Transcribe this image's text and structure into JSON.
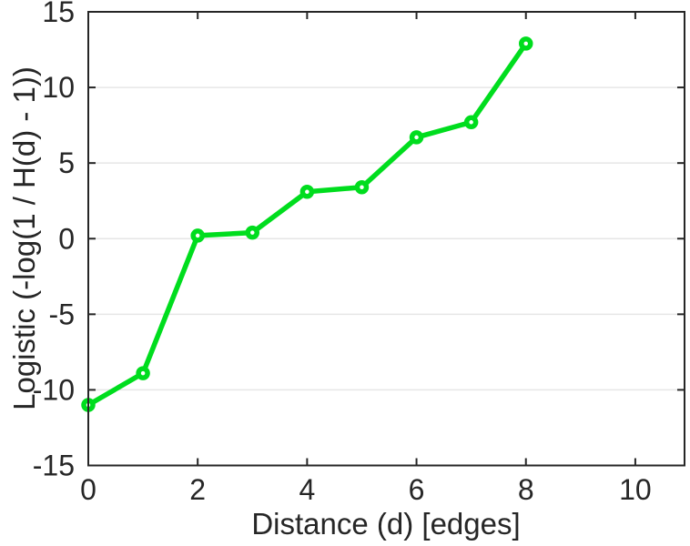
{
  "chart_data": {
    "type": "line",
    "title": "",
    "xlabel": "Distance (d) [edges]",
    "ylabel": "Logistic (-log(1 / H(d) - 1))",
    "x": [
      0,
      1,
      2,
      3,
      4,
      5,
      6,
      7,
      8
    ],
    "y": [
      -11.0,
      -8.9,
      0.2,
      0.4,
      3.1,
      3.4,
      6.7,
      7.7,
      12.9
    ],
    "xlim": [
      0,
      10.9
    ],
    "ylim": [
      -15,
      15
    ],
    "xticks": [
      0,
      2,
      4,
      6,
      8,
      10
    ],
    "yticks": [
      -15,
      -10,
      -5,
      0,
      5,
      10,
      15
    ],
    "grid": "horizontal",
    "legend": null,
    "colors": {
      "line": "#00dd1e",
      "marker_fill": "#ffffff",
      "axis": "#262626",
      "grid": "#e6e6e6",
      "background": "#ffffff"
    },
    "marker": "circle-hollow"
  }
}
